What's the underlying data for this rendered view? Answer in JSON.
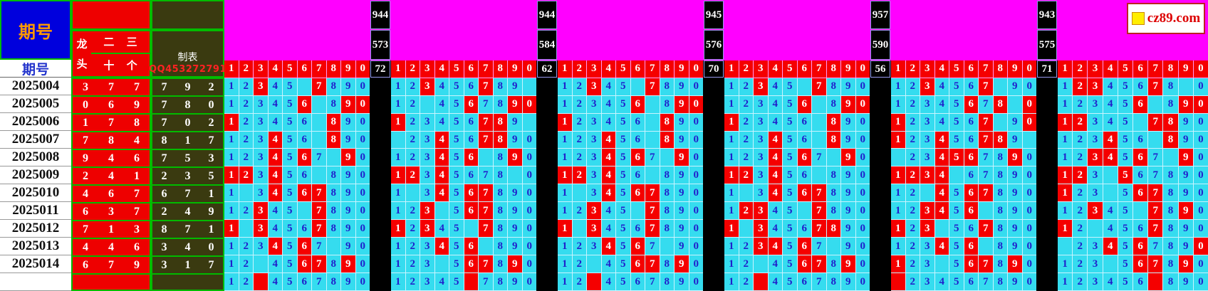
{
  "branding": {
    "logo_text": "cz89.com"
  },
  "header": {
    "period_label_top": "期号",
    "period_label": "期号",
    "red_group": {
      "left_top": "龙",
      "left_bottom": "头",
      "top_1": "二",
      "top_2": "三",
      "bottom_1": "十",
      "bottom_2": "个"
    },
    "olive_group": {
      "title": "制表",
      "qq": "QQ453272791"
    },
    "digit_headers": [
      "1",
      "2",
      "3",
      "4",
      "5",
      "6",
      "7",
      "8",
      "9",
      "0"
    ]
  },
  "colors": {
    "magenta_band": "#FF00FF",
    "highlight_red": "#F50000",
    "cell_cyan": "#35DCEF",
    "digit_blue": "#2020CC",
    "olive": "#3A3A10",
    "blue_box": "#0000DD",
    "green_border": "#00BB00",
    "stat_black": "#000000",
    "logo_yellow": "#FFEE00"
  },
  "chart_data": {
    "type": "table",
    "stat_columns": [
      [
        "944",
        "573",
        "72"
      ],
      [
        "944",
        "584",
        "62"
      ],
      [
        "945",
        "576",
        "70"
      ],
      [
        "957",
        "590",
        "56"
      ],
      [
        "943",
        "575",
        "71"
      ]
    ],
    "rows": [
      {
        "period": "2025004",
        "red": [
          "3",
          "7",
          "7"
        ],
        "olive": [
          "7",
          "9",
          "2"
        ],
        "panels": [
          "nnRnnbRnnn",
          "nnRnnnRnnb",
          "nnRnnbRnnn",
          "nnRnnbRnnn",
          "nnRnnnRbnn",
          "nRRnnnRnbn"
        ]
      },
      {
        "period": "2025005",
        "red": [
          "0",
          "6",
          "9"
        ],
        "olive": [
          "7",
          "8",
          "0"
        ],
        "panels": [
          "nnnnnRbnRR",
          "nnbnnRnnRR",
          "nnnnnRbnRR",
          "nnnnnRbnRR",
          "nnnnnRnRbR",
          "nnnnnRbnRR"
        ]
      },
      {
        "period": "2025006",
        "red": [
          "1",
          "7",
          "8"
        ],
        "olive": [
          "7",
          "0",
          "2"
        ],
        "panels": [
          "RnnnnnbRnn",
          "RnnnnnRRnb",
          "RnnnnnbRnn",
          "RnnnnnbRnn",
          "RnnnnnRbnR",
          "RRnnnbRRnn"
        ]
      },
      {
        "period": "2025007",
        "red": [
          "7",
          "8",
          "4"
        ],
        "olive": [
          "8",
          "1",
          "7"
        ],
        "panels": [
          "nnnRnnbRnn",
          "bnnRnnRRnn",
          "nnnRnnbRnn",
          "nnnRnnbRnn",
          "RnnRnnRRnb",
          "nnnRnnbRnn"
        ]
      },
      {
        "period": "2025008",
        "red": [
          "9",
          "4",
          "6"
        ],
        "olive": [
          "7",
          "5",
          "3"
        ],
        "panels": [
          "nnnRnRnbRn",
          "nnnRnRbnRn",
          "nnnRnRnbRn",
          "nnnRnRnbRn",
          "bnnRRRnnRn",
          "nnRRnRnbRn"
        ]
      },
      {
        "period": "2025009",
        "red": [
          "2",
          "4",
          "1"
        ],
        "olive": [
          "2",
          "3",
          "5"
        ],
        "panels": [
          "RRnRnnbnnn",
          "RRnRnnnnbn",
          "RRnRnnbnnn",
          "RRnRnnbnnn",
          "RRRRbnnnnn",
          "RRnbRnnnnn"
        ]
      },
      {
        "period": "2025010",
        "red": [
          "4",
          "6",
          "7"
        ],
        "olive": [
          "6",
          "7",
          "1"
        ],
        "panels": [
          "nbnRnRRnnn",
          "nbnRnRRnnn",
          "nbnRnRRnnn",
          "nbnRnRRnnn",
          "nnbRnRRnnn",
          "RnnbnRRnnn"
        ]
      },
      {
        "period": "2025011",
        "red": [
          "6",
          "3",
          "7"
        ],
        "olive": [
          "2",
          "4",
          "9"
        ],
        "panels": [
          "nnRnnbRnnn",
          "nnRbnRRnnn",
          "nnRnnbRnnn",
          "nRRnnbRnnn",
          "nnRRnRbnnn",
          "nnRnnbRnRn"
        ]
      },
      {
        "period": "2025012",
        "red": [
          "7",
          "1",
          "3"
        ],
        "olive": [
          "8",
          "7",
          "1"
        ],
        "panels": [
          "RbRnnnRnnn",
          "RnRnnbRnnn",
          "RbRnnnRnnn",
          "RbRnnnRRnn",
          "RnRbnnRnnn",
          "RnbnnnRnnn"
        ]
      },
      {
        "period": "2025013",
        "red": [
          "4",
          "4",
          "6"
        ],
        "olive": [
          "3",
          "4",
          "0"
        ],
        "panels": [
          "nnnRnRnbnn",
          "nnnRnRbnnn",
          "nnnRnRnbnn",
          "nnRRnRnbnn",
          "nnnRnRbnnn",
          "bnnRnRnnnR"
        ]
      },
      {
        "period": "2025014",
        "red": [
          "6",
          "7",
          "9"
        ],
        "olive": [
          "3",
          "1",
          "7"
        ],
        "panels": [
          "nnbnnRRnRn",
          "nnnbnRRnRn",
          "nnbnnRRnRn",
          "nnbnnRRnRn",
          "RnnbnRRnRn",
          "nnnbnRRnRn"
        ]
      },
      {
        "period": "",
        "red": [
          "",
          "",
          ""
        ],
        "olive": [
          "",
          "",
          ""
        ],
        "panels": [
          "nnXnnnnnnn",
          "nnnnnXnnnn",
          "nnXnnnnnnn",
          "nnXnnnnnnn",
          "Xnnnnnnnnn",
          "nnnnnnXnnn"
        ]
      }
    ]
  }
}
